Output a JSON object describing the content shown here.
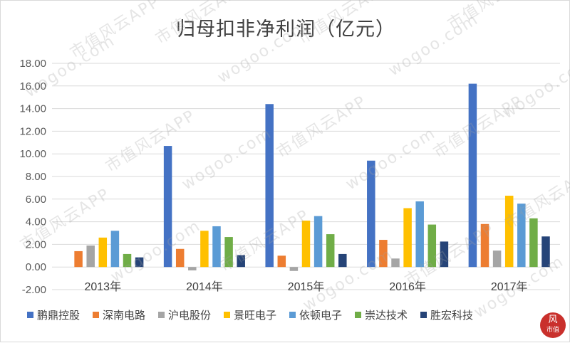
{
  "chart_data": {
    "type": "bar",
    "title": "归母扣非净利润（亿元）",
    "categories": [
      "2013年",
      "2014年",
      "2015年",
      "2016年",
      "2017年"
    ],
    "ylim": [
      -2,
      18
    ],
    "yticks": [
      "-2.00",
      "0.00",
      "2.00",
      "4.00",
      "6.00",
      "8.00",
      "10.00",
      "12.00",
      "14.00",
      "16.00",
      "18.00"
    ],
    "grid": true,
    "legend_position": "bottom",
    "series": [
      {
        "name": "鹏鼎控股",
        "color": "#4472C4",
        "values": [
          null,
          10.7,
          14.4,
          9.4,
          16.2
        ]
      },
      {
        "name": "深南电路",
        "color": "#ED7D31",
        "values": [
          1.4,
          1.6,
          1.0,
          2.4,
          3.8
        ]
      },
      {
        "name": "沪电股份",
        "color": "#A5A5A5",
        "values": [
          1.9,
          -0.3,
          -0.35,
          0.75,
          1.45
        ]
      },
      {
        "name": "景旺电子",
        "color": "#FFC000",
        "values": [
          2.6,
          3.2,
          4.1,
          5.2,
          6.3
        ]
      },
      {
        "name": "依顿电子",
        "color": "#5B9BD5",
        "values": [
          3.2,
          3.6,
          4.5,
          5.8,
          5.6
        ]
      },
      {
        "name": "崇达技术",
        "color": "#70AD47",
        "values": [
          1.15,
          2.65,
          2.9,
          3.75,
          4.3
        ]
      },
      {
        "name": "胜宏科技",
        "color": "#264478",
        "values": [
          0.85,
          1.05,
          1.15,
          2.25,
          2.7
        ]
      }
    ]
  },
  "watermark": {
    "text1": "市值风云APP",
    "text2": "wogoo.com"
  },
  "logo": {
    "line1": "风",
    "line2": "市值"
  }
}
